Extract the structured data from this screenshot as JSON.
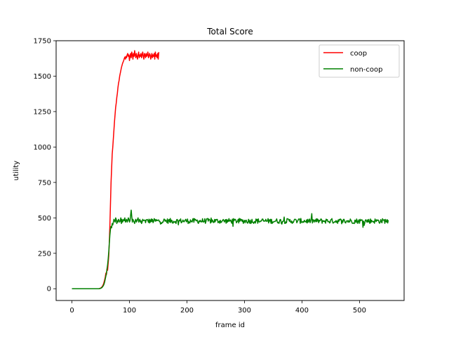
{
  "chart_data": {
    "type": "line",
    "title": "Total Score",
    "xlabel": "frame id",
    "ylabel": "utility",
    "xlim": [
      -27.5,
      577.5
    ],
    "ylim": [
      -83,
      1750
    ],
    "xticks": [
      0,
      100,
      200,
      300,
      400,
      500
    ],
    "yticks": [
      0,
      250,
      500,
      750,
      1000,
      1250,
      1500,
      1750
    ],
    "grid": false,
    "legend_position": "top-right",
    "series": [
      {
        "name": "coop",
        "color": "#ff0000",
        "x_start": 0,
        "x_step": 1,
        "values": [
          0,
          0,
          0,
          0,
          0,
          0,
          0,
          0,
          0,
          0,
          0,
          0,
          0,
          0,
          0,
          0,
          0,
          0,
          0,
          0,
          0,
          0,
          0,
          0,
          0,
          0,
          0,
          0,
          0,
          0,
          0,
          0,
          0,
          0,
          0,
          0,
          0,
          0,
          0,
          0,
          0,
          0,
          0,
          0,
          0,
          0,
          0,
          0,
          2,
          3,
          5,
          8,
          12,
          18,
          25,
          35,
          50,
          65,
          85,
          110,
          100,
          140,
          130,
          180,
          230,
          330,
          450,
          600,
          750,
          850,
          950,
          1000,
          1060,
          1120,
          1180,
          1230,
          1280,
          1310,
          1350,
          1380,
          1420,
          1450,
          1470,
          1500,
          1520,
          1540,
          1560,
          1575,
          1590,
          1600,
          1610,
          1625,
          1635,
          1620,
          1640,
          1630,
          1650,
          1660,
          1640,
          1650,
          1610,
          1640,
          1660,
          1630,
          1670,
          1650,
          1620,
          1660,
          1640,
          1680,
          1650,
          1630,
          1660,
          1640,
          1620,
          1650,
          1670,
          1630,
          1650,
          1640,
          1660,
          1630,
          1650,
          1670,
          1640,
          1620,
          1660,
          1650,
          1630,
          1660,
          1640,
          1650,
          1670,
          1630,
          1640,
          1660,
          1650,
          1620,
          1640,
          1660,
          1630,
          1650,
          1640,
          1660,
          1620,
          1670,
          1640,
          1650,
          1630,
          1660,
          1620,
          1670
        ]
      },
      {
        "name": "non-coop",
        "color": "#008000",
        "x_start": 0,
        "x_step": 1,
        "values_head": [
          0,
          0,
          0,
          0,
          0,
          0,
          0,
          0,
          0,
          0,
          0,
          0,
          0,
          0,
          0,
          0,
          0,
          0,
          0,
          0,
          0,
          0,
          0,
          0,
          0,
          0,
          0,
          0,
          0,
          0,
          0,
          0,
          0,
          0,
          0,
          0,
          0,
          0,
          0,
          0,
          0,
          0,
          0,
          0,
          0,
          0,
          0,
          0,
          1,
          2,
          3,
          5,
          8,
          12,
          18,
          25,
          35,
          50,
          70,
          90,
          110,
          140,
          170,
          210,
          260,
          320,
          380,
          420,
          440,
          430,
          460,
          450,
          470,
          490,
          480,
          470,
          500,
          490,
          460,
          480,
          470,
          490,
          480,
          470,
          480,
          500,
          460,
          490,
          470,
          480,
          490,
          480,
          500,
          470,
          480,
          490,
          470,
          480,
          500,
          490,
          470,
          480,
          520,
          555,
          510,
          470,
          490,
          480,
          470,
          460,
          480,
          490,
          470,
          480,
          490,
          500,
          470,
          480,
          490,
          470,
          480,
          460,
          470,
          490,
          480
        ],
        "mean": 478,
        "noise_amplitude": 18,
        "x_end": 550
      }
    ]
  }
}
